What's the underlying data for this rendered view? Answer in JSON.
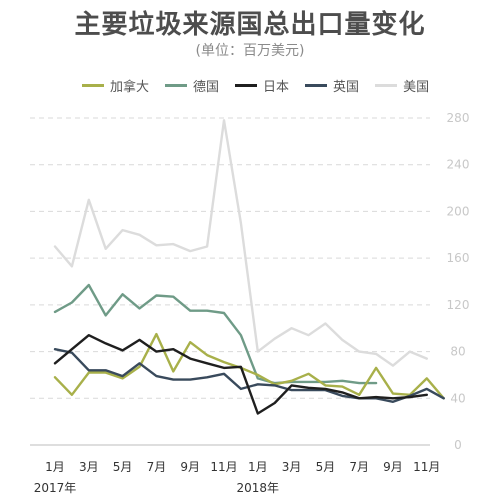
{
  "title": "主要垃圾来源国总出口量变化",
  "subtitle": "(单位：百万美元)",
  "colors": {
    "series": [
      "#a8b04a",
      "#6f9b87",
      "#1f1f1f",
      "#394a5c",
      "#dcdcdc"
    ]
  },
  "chart_data": {
    "type": "line",
    "title": "主要垃圾来源国总出口量变化",
    "subtitle": "(单位：百万美元)",
    "ylim": [
      0,
      280
    ],
    "yticks": [
      0,
      40,
      80,
      120,
      160,
      200,
      240,
      280
    ],
    "y_axis_side": "right",
    "grid": true,
    "legend_position": "top",
    "x_tick_labels": [
      {
        "index": 0,
        "label": "1月"
      },
      {
        "index": 2,
        "label": "3月"
      },
      {
        "index": 4,
        "label": "5月"
      },
      {
        "index": 6,
        "label": "7月"
      },
      {
        "index": 8,
        "label": "9月"
      },
      {
        "index": 10,
        "label": "11月"
      },
      {
        "index": 12,
        "label": "1月"
      },
      {
        "index": 14,
        "label": "3月"
      },
      {
        "index": 16,
        "label": "5月"
      },
      {
        "index": 18,
        "label": "7月"
      },
      {
        "index": 20,
        "label": "9月"
      },
      {
        "index": 22,
        "label": "11月"
      }
    ],
    "year_labels": [
      {
        "index": 0,
        "label": "2017年"
      },
      {
        "index": 12,
        "label": "2018年"
      }
    ],
    "series": [
      {
        "name": "加拿大",
        "values": [
          58,
          43,
          62,
          62,
          57,
          67,
          95,
          63,
          88,
          77,
          71,
          66,
          60,
          52,
          55,
          61,
          51,
          50,
          43,
          66,
          44,
          43,
          57,
          40
        ]
      },
      {
        "name": "德国",
        "values": [
          114,
          122,
          137,
          111,
          129,
          117,
          128,
          127,
          115,
          115,
          113,
          94,
          57,
          53,
          54,
          54,
          54,
          55,
          53,
          53,
          null,
          null,
          null,
          null
        ]
      },
      {
        "name": "日本",
        "values": [
          70,
          82,
          94,
          87,
          81,
          90,
          80,
          82,
          74,
          70,
          66,
          67,
          27,
          36,
          51,
          49,
          48,
          45,
          40,
          41,
          40,
          41,
          43,
          null
        ]
      },
      {
        "name": "英国",
        "values": [
          82,
          79,
          64,
          64,
          59,
          70,
          59,
          56,
          56,
          58,
          61,
          48,
          52,
          51,
          47,
          47,
          47,
          42,
          40,
          40,
          37,
          42,
          48,
          40
        ]
      },
      {
        "name": "美国",
        "values": [
          170,
          153,
          210,
          168,
          184,
          180,
          171,
          172,
          166,
          170,
          278,
          190,
          80,
          91,
          100,
          94,
          104,
          90,
          80,
          78,
          68,
          80,
          74,
          null
        ]
      }
    ]
  }
}
